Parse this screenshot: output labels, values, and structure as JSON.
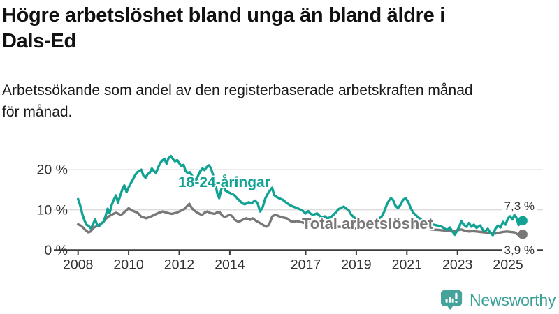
{
  "header": {
    "title_line1": "Högre arbetslöshet bland unga än bland äldre i",
    "title_line2": "Dals-Ed",
    "subtitle_line1": "Arbetssökande som andel av den registerbaserade arbetskraften månad",
    "subtitle_line2": "för månad."
  },
  "footer": {
    "brand": "Newsworthy",
    "logo_icon": "bar-chart-pin-icon"
  },
  "colors": {
    "young_line": "#12a294",
    "total_line": "#787878",
    "axis": "#3c3c3c",
    "grid": "#d8d8d8",
    "tick_text": "#333333",
    "logo_teal": "#44a49b"
  },
  "chart_data": {
    "type": "line",
    "title": "Högre arbetslöshet bland unga än bland äldre i Dals-Ed",
    "xlabel": "",
    "ylabel": "",
    "ylim": [
      0,
      25
    ],
    "xlim": [
      2008,
      2025.6
    ],
    "grid": "horizontal",
    "legend_position": "inline-labels",
    "yticks": [
      {
        "value": 0,
        "label": "0 %"
      },
      {
        "value": 10,
        "label": "10 %"
      },
      {
        "value": 20,
        "label": "20 %"
      }
    ],
    "xticks": [
      {
        "value": 2008,
        "label": "2008"
      },
      {
        "value": 2010,
        "label": "2010"
      },
      {
        "value": 2012,
        "label": "2012"
      },
      {
        "value": 2014,
        "label": "2014"
      },
      {
        "value": 2017,
        "label": "2017"
      },
      {
        "value": 2019,
        "label": "2019"
      },
      {
        "value": 2021,
        "label": "2021"
      },
      {
        "value": 2023,
        "label": "2023"
      },
      {
        "value": 2025,
        "label": "2025"
      }
    ],
    "series": [
      {
        "name": "18-24-åringar",
        "color": "#12a294",
        "end_label": "7,3 %",
        "end_value": 7.3,
        "points": [
          [
            2008.0,
            12.7
          ],
          [
            2008.08,
            11.2
          ],
          [
            2008.17,
            8.9
          ],
          [
            2008.25,
            7.4
          ],
          [
            2008.33,
            6.3
          ],
          [
            2008.42,
            6.0
          ],
          [
            2008.5,
            5.4
          ],
          [
            2008.58,
            6.2
          ],
          [
            2008.67,
            7.6
          ],
          [
            2008.75,
            6.4
          ],
          [
            2008.83,
            5.9
          ],
          [
            2008.92,
            6.6
          ],
          [
            2009.0,
            6.9
          ],
          [
            2009.08,
            8.3
          ],
          [
            2009.17,
            10.3
          ],
          [
            2009.25,
            9.2
          ],
          [
            2009.33,
            11.2
          ],
          [
            2009.42,
            12.6
          ],
          [
            2009.5,
            13.6
          ],
          [
            2009.58,
            11.8
          ],
          [
            2009.67,
            13.6
          ],
          [
            2009.75,
            15.1
          ],
          [
            2009.83,
            16.1
          ],
          [
            2009.92,
            14.4
          ],
          [
            2010.0,
            15.6
          ],
          [
            2010.08,
            16.6
          ],
          [
            2010.17,
            17.6
          ],
          [
            2010.25,
            18.6
          ],
          [
            2010.33,
            19.3
          ],
          [
            2010.42,
            19.7
          ],
          [
            2010.5,
            20.0
          ],
          [
            2010.58,
            18.6
          ],
          [
            2010.67,
            18.0
          ],
          [
            2010.75,
            18.9
          ],
          [
            2010.83,
            19.2
          ],
          [
            2010.92,
            20.3
          ],
          [
            2011.0,
            19.6
          ],
          [
            2011.08,
            19.2
          ],
          [
            2011.17,
            20.6
          ],
          [
            2011.25,
            21.7
          ],
          [
            2011.33,
            22.3
          ],
          [
            2011.42,
            22.7
          ],
          [
            2011.5,
            21.5
          ],
          [
            2011.58,
            22.9
          ],
          [
            2011.67,
            23.4
          ],
          [
            2011.75,
            22.7
          ],
          [
            2011.83,
            22.1
          ],
          [
            2011.92,
            22.4
          ],
          [
            2012.0,
            21.6
          ],
          [
            2012.08,
            20.9
          ],
          [
            2012.17,
            21.2
          ],
          [
            2012.25,
            19.7
          ],
          [
            2012.33,
            19.2
          ],
          [
            2012.42,
            19.4
          ],
          [
            2012.5,
            18.6
          ],
          [
            2012.58,
            17.9
          ],
          [
            2012.67,
            17.4
          ],
          [
            2012.75,
            18.6
          ],
          [
            2012.83,
            19.6
          ],
          [
            2012.92,
            20.3
          ],
          [
            2013.0,
            19.9
          ],
          [
            2013.08,
            20.6
          ],
          [
            2013.17,
            21.1
          ],
          [
            2013.25,
            20.4
          ],
          [
            2013.33,
            18.9
          ],
          [
            2013.42,
            16.9
          ],
          [
            2013.5,
            14.2
          ],
          [
            2013.58,
            12.9
          ],
          [
            2013.67,
            15.3
          ],
          [
            2013.75,
            15.9
          ],
          [
            2013.83,
            14.8
          ],
          [
            2013.92,
            14.5
          ],
          [
            2014.0,
            14.2
          ],
          [
            2014.17,
            13.7
          ],
          [
            2014.3,
            12.8
          ],
          [
            2014.5,
            11.6
          ],
          [
            2014.6,
            11.4
          ],
          [
            2014.75,
            11.9
          ],
          [
            2014.85,
            11.6
          ],
          [
            2015.0,
            12.3
          ],
          [
            2015.1,
            11.6
          ],
          [
            2015.2,
            9.6
          ],
          [
            2015.3,
            10.7
          ],
          [
            2015.4,
            12.8
          ],
          [
            2015.5,
            14.0
          ],
          [
            2015.6,
            14.9
          ],
          [
            2015.67,
            15.5
          ],
          [
            2015.75,
            13.7
          ],
          [
            2015.85,
            13.2
          ],
          [
            2015.95,
            12.9
          ],
          [
            2016.1,
            12.5
          ],
          [
            2016.25,
            11.7
          ],
          [
            2016.4,
            11.1
          ],
          [
            2016.5,
            10.8
          ],
          [
            2016.65,
            10.5
          ],
          [
            2016.75,
            10.2
          ],
          [
            2016.85,
            9.9
          ],
          [
            2017.0,
            9.1
          ],
          [
            2017.1,
            9.7
          ],
          [
            2017.2,
            9.0
          ],
          [
            2017.3,
            8.8
          ],
          [
            2017.45,
            9.1
          ],
          [
            2017.55,
            8.5
          ],
          [
            2017.65,
            8.1
          ],
          [
            2017.75,
            8.4
          ],
          [
            2017.85,
            7.9
          ],
          [
            2018.0,
            8.2
          ],
          [
            2018.1,
            8.8
          ],
          [
            2018.2,
            9.4
          ],
          [
            2018.3,
            10.2
          ],
          [
            2018.4,
            10.5
          ],
          [
            2018.5,
            10.8
          ],
          [
            2018.6,
            10.3
          ],
          [
            2018.7,
            9.9
          ],
          [
            2018.8,
            8.8
          ],
          [
            2018.9,
            8.2
          ],
          [
            2019.0,
            7.7
          ],
          [
            2019.2,
            7.3
          ],
          [
            2019.4,
            7.0
          ],
          [
            2019.6,
            7.1
          ],
          [
            2019.8,
            7.4
          ],
          [
            2020.0,
            8.3
          ],
          [
            2020.1,
            9.5
          ],
          [
            2020.2,
            11.2
          ],
          [
            2020.3,
            12.4
          ],
          [
            2020.37,
            12.9
          ],
          [
            2020.45,
            12.5
          ],
          [
            2020.55,
            11.0
          ],
          [
            2020.65,
            10.4
          ],
          [
            2020.75,
            11.3
          ],
          [
            2020.85,
            12.5
          ],
          [
            2020.95,
            12.9
          ],
          [
            2021.05,
            12.0
          ],
          [
            2021.15,
            10.5
          ],
          [
            2021.25,
            9.3
          ],
          [
            2021.4,
            8.4
          ],
          [
            2021.6,
            7.4
          ],
          [
            2021.8,
            6.8
          ],
          [
            2022.0,
            6.4
          ],
          [
            2022.2,
            6.1
          ],
          [
            2022.35,
            5.9
          ],
          [
            2022.5,
            5.3
          ],
          [
            2022.6,
            5.0
          ],
          [
            2022.7,
            5.6
          ],
          [
            2022.8,
            4.6
          ],
          [
            2022.9,
            3.8
          ],
          [
            2023.0,
            5.0
          ],
          [
            2023.08,
            5.9
          ],
          [
            2023.15,
            7.2
          ],
          [
            2023.25,
            6.3
          ],
          [
            2023.35,
            5.8
          ],
          [
            2023.45,
            6.7
          ],
          [
            2023.55,
            5.8
          ],
          [
            2023.65,
            6.3
          ],
          [
            2023.75,
            5.5
          ],
          [
            2023.9,
            6.1
          ],
          [
            2024.0,
            5.0
          ],
          [
            2024.1,
            4.7
          ],
          [
            2024.2,
            5.3
          ],
          [
            2024.3,
            4.2
          ],
          [
            2024.4,
            3.7
          ],
          [
            2024.5,
            5.3
          ],
          [
            2024.6,
            6.1
          ],
          [
            2024.7,
            5.6
          ],
          [
            2024.8,
            7.0
          ],
          [
            2024.9,
            6.3
          ],
          [
            2025.0,
            7.9
          ],
          [
            2025.08,
            8.4
          ],
          [
            2025.17,
            7.6
          ],
          [
            2025.25,
            8.7
          ],
          [
            2025.33,
            8.1
          ],
          [
            2025.42,
            6.2
          ],
          [
            2025.5,
            7.6
          ],
          [
            2025.58,
            7.3
          ]
        ]
      },
      {
        "name": "Total arbetslöshet",
        "color": "#787878",
        "end_label": "3,9 %",
        "end_value": 3.9,
        "points": [
          [
            2008.0,
            6.4
          ],
          [
            2008.1,
            6.1
          ],
          [
            2008.2,
            5.6
          ],
          [
            2008.3,
            4.9
          ],
          [
            2008.4,
            4.4
          ],
          [
            2008.5,
            4.6
          ],
          [
            2008.6,
            5.5
          ],
          [
            2008.8,
            6.1
          ],
          [
            2009.0,
            7.0
          ],
          [
            2009.15,
            8.1
          ],
          [
            2009.3,
            8.7
          ],
          [
            2009.5,
            9.3
          ],
          [
            2009.7,
            8.7
          ],
          [
            2009.9,
            9.8
          ],
          [
            2010.0,
            10.4
          ],
          [
            2010.15,
            9.8
          ],
          [
            2010.35,
            9.3
          ],
          [
            2010.5,
            8.3
          ],
          [
            2010.7,
            7.9
          ],
          [
            2010.9,
            8.4
          ],
          [
            2011.0,
            8.7
          ],
          [
            2011.2,
            9.3
          ],
          [
            2011.35,
            9.6
          ],
          [
            2011.5,
            9.3
          ],
          [
            2011.7,
            9.0
          ],
          [
            2011.9,
            9.3
          ],
          [
            2012.0,
            9.6
          ],
          [
            2012.2,
            10.2
          ],
          [
            2012.4,
            11.5
          ],
          [
            2012.5,
            10.4
          ],
          [
            2012.6,
            9.8
          ],
          [
            2012.8,
            9.0
          ],
          [
            2012.9,
            8.7
          ],
          [
            2013.0,
            9.3
          ],
          [
            2013.1,
            9.6
          ],
          [
            2013.25,
            9.2
          ],
          [
            2013.4,
            9.0
          ],
          [
            2013.5,
            9.4
          ],
          [
            2013.6,
            9.4
          ],
          [
            2013.7,
            8.6
          ],
          [
            2013.8,
            8.2
          ],
          [
            2013.9,
            8.5
          ],
          [
            2014.0,
            8.8
          ],
          [
            2014.1,
            8.4
          ],
          [
            2014.2,
            7.5
          ],
          [
            2014.35,
            7.0
          ],
          [
            2014.5,
            7.5
          ],
          [
            2014.65,
            7.9
          ],
          [
            2014.8,
            7.5
          ],
          [
            2014.9,
            7.9
          ],
          [
            2015.05,
            7.2
          ],
          [
            2015.2,
            6.7
          ],
          [
            2015.35,
            6.1
          ],
          [
            2015.45,
            5.8
          ],
          [
            2015.55,
            6.3
          ],
          [
            2015.68,
            8.4
          ],
          [
            2015.8,
            8.8
          ],
          [
            2015.95,
            8.4
          ],
          [
            2016.1,
            8.1
          ],
          [
            2016.25,
            7.9
          ],
          [
            2016.4,
            7.2
          ],
          [
            2016.5,
            7.0
          ],
          [
            2016.65,
            7.2
          ],
          [
            2016.8,
            7.0
          ],
          [
            2016.95,
            6.7
          ],
          [
            2017.1,
            7.0
          ],
          [
            2017.2,
            6.7
          ],
          [
            2017.35,
            6.3
          ],
          [
            2017.5,
            6.7
          ],
          [
            2017.65,
            6.3
          ],
          [
            2017.8,
            6.1
          ],
          [
            2018.0,
            6.0
          ],
          [
            2018.25,
            5.8
          ],
          [
            2018.5,
            5.7
          ],
          [
            2018.75,
            5.5
          ],
          [
            2019.0,
            5.4
          ],
          [
            2019.25,
            5.3
          ],
          [
            2019.5,
            5.2
          ],
          [
            2019.75,
            5.3
          ],
          [
            2020.0,
            5.8
          ],
          [
            2020.25,
            6.5
          ],
          [
            2020.5,
            7.0
          ],
          [
            2020.75,
            6.8
          ],
          [
            2021.0,
            6.5
          ],
          [
            2021.25,
            6.0
          ],
          [
            2021.5,
            5.6
          ],
          [
            2021.75,
            5.3
          ],
          [
            2022.0,
            5.1
          ],
          [
            2022.25,
            5.0
          ],
          [
            2022.4,
            4.9
          ],
          [
            2022.55,
            4.8
          ],
          [
            2022.7,
            4.7
          ],
          [
            2022.85,
            4.6
          ],
          [
            2023.0,
            4.9
          ],
          [
            2023.15,
            5.1
          ],
          [
            2023.3,
            4.8
          ],
          [
            2023.45,
            4.6
          ],
          [
            2023.6,
            4.7
          ],
          [
            2023.75,
            4.6
          ],
          [
            2023.9,
            4.5
          ],
          [
            2024.05,
            4.4
          ],
          [
            2024.2,
            4.3
          ],
          [
            2024.35,
            4.2
          ],
          [
            2024.5,
            4.1
          ],
          [
            2024.65,
            4.3
          ],
          [
            2024.8,
            4.5
          ],
          [
            2024.95,
            4.6
          ],
          [
            2025.1,
            4.5
          ],
          [
            2025.25,
            4.4
          ],
          [
            2025.4,
            3.8
          ],
          [
            2025.58,
            3.9
          ]
        ]
      }
    ]
  }
}
